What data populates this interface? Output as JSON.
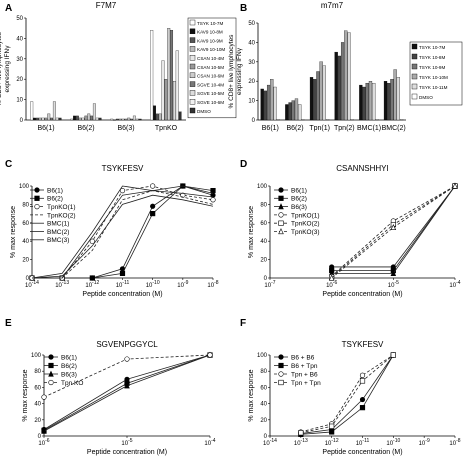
{
  "chart_data": [
    {
      "id": "A",
      "panel_letter": "A",
      "type": "bar",
      "title": "F7M7",
      "ylabel": "% CD8+ live lymphocytes expressing IFNγ",
      "ylim": [
        0,
        50
      ],
      "yticks": [
        "0",
        "10",
        "20",
        "30",
        "40",
        "50"
      ],
      "categories": [
        "B6(1)",
        "B6(2)",
        "B6(3)",
        "TpnKO"
      ],
      "legend": [
        "TSYK 10-7M",
        "KAV9 10-8M",
        "KAV9 10-9M",
        "KAV9 10-10M",
        "CSAN 10-4M",
        "CSAN 10-5M",
        "CSAN 10-6M",
        "SGVE 10-4M",
        "SGVE 10-5M",
        "SGVE 10-6M",
        "DMSO"
      ],
      "colors": [
        "#ffffff",
        "#111111",
        "#555555",
        "#bbbbbb",
        "#e8e8e8",
        "#999999",
        "#cccccc",
        "#777777",
        "#dddddd",
        "#f0f0f0",
        "#333333"
      ],
      "series_values": [
        [
          9,
          0.5,
          0.5,
          44
        ],
        [
          1,
          2,
          0,
          7
        ],
        [
          1,
          2,
          0.5,
          3
        ],
        [
          1,
          1,
          0.5,
          3
        ],
        [
          1,
          1,
          0.5,
          29
        ],
        [
          1,
          2,
          0.5,
          20
        ],
        [
          3,
          3,
          1,
          45
        ],
        [
          1,
          2,
          0.5,
          44
        ],
        [
          9,
          8,
          2,
          19
        ],
        [
          1,
          1,
          0.5,
          34
        ],
        [
          1,
          1,
          0.5,
          4
        ]
      ]
    },
    {
      "id": "B",
      "panel_letter": "B",
      "type": "bar",
      "title": "m7m7",
      "ylabel": "% CD8+ live lymphocytes expressing IFNγ",
      "ylim": [
        0,
        50
      ],
      "yticks": [
        "0",
        "10",
        "20",
        "30",
        "40",
        "50"
      ],
      "categories": [
        "B6(1)",
        "B6(2)",
        "Tpn(1)",
        "Tpn(2)",
        "BMC(1)",
        "BMC(2)"
      ],
      "legend": [
        "TSYK 10-7M",
        "TSYK 10-8M",
        "TSYK 10-9M",
        "TSYK 10-10M",
        "TSYK 10-11M",
        "DMSO"
      ],
      "colors": [
        "#111111",
        "#444444",
        "#777777",
        "#aaaaaa",
        "#dddddd",
        "#ffffff"
      ],
      "series_values": [
        [
          16,
          8,
          22,
          35,
          18,
          20
        ],
        [
          15,
          9,
          21,
          33,
          17,
          19
        ],
        [
          18,
          10,
          25,
          40,
          19,
          21
        ],
        [
          21,
          11,
          30,
          46,
          20,
          26
        ],
        [
          17,
          8,
          28,
          45,
          19,
          22
        ],
        [
          0.3,
          0.2,
          0.3,
          0.3,
          0.3,
          0.3
        ]
      ]
    },
    {
      "id": "C",
      "panel_letter": "C",
      "type": "line",
      "title": "TSYKFESV",
      "xlabel": "Peptide concentration (M)",
      "ylabel": "% max response",
      "ylim": [
        0,
        100
      ],
      "yticks": [
        "0",
        "20",
        "40",
        "60",
        "80",
        "100"
      ],
      "x_exponents": [
        -14,
        -13,
        -12,
        -11,
        -10,
        -9,
        -8
      ],
      "xtick_labels": [
        "10-14",
        "10-13",
        "10-12",
        "10-11",
        "10-10",
        "10-9",
        "10-8"
      ],
      "series": [
        {
          "name": "B6(1)",
          "style": "solid",
          "marker": "circle",
          "x": [
            -14,
            -13,
            -12,
            -11,
            -10,
            -9,
            -8
          ],
          "y": [
            0,
            0,
            0,
            10,
            78,
            100,
            90
          ]
        },
        {
          "name": "B6(2)",
          "style": "solid",
          "marker": "square",
          "x": [
            -14,
            -13,
            -12,
            -11,
            -10,
            -9,
            -8
          ],
          "y": [
            0,
            0,
            0,
            5,
            70,
            100,
            95
          ]
        },
        {
          "name": "TpnKO(1)",
          "style": "dashed",
          "marker": "open-circle",
          "x": [
            -14,
            -13,
            -12,
            -11,
            -10,
            -9,
            -8
          ],
          "y": [
            0,
            0,
            40,
            95,
            100,
            90,
            85
          ]
        },
        {
          "name": "TpnKO(2)",
          "style": "dashed",
          "marker": "none",
          "x": [
            -14,
            -13,
            -12,
            -11,
            -10,
            -9,
            -8
          ],
          "y": [
            0,
            0,
            30,
            85,
            95,
            88,
            80
          ]
        },
        {
          "name": "BMC(1)",
          "style": "solid",
          "marker": "none",
          "x": [
            -14,
            -13,
            -12,
            -11,
            -10,
            -9,
            -8
          ],
          "y": [
            0,
            5,
            50,
            100,
            95,
            100,
            92
          ]
        },
        {
          "name": "BMC(2)",
          "style": "solid",
          "marker": "none",
          "x": [
            -14,
            -13,
            -12,
            -11,
            -10,
            -9,
            -8
          ],
          "y": [
            0,
            0,
            45,
            90,
            95,
            92,
            88
          ]
        },
        {
          "name": "BMC(3)",
          "style": "solid",
          "marker": "none",
          "x": [
            -14,
            -13,
            -12,
            -11,
            -10,
            -9,
            -8
          ],
          "y": [
            0,
            2,
            35,
            80,
            90,
            85,
            78
          ]
        }
      ]
    },
    {
      "id": "D",
      "panel_letter": "D",
      "type": "line",
      "title": "CSANNSHHYI",
      "xlabel": "Peptide concentration (M)",
      "ylabel": "% max response",
      "ylim": [
        0,
        100
      ],
      "yticks": [
        "0",
        "20",
        "40",
        "60",
        "80",
        "100"
      ],
      "x_exponents": [
        -7,
        -6,
        -5,
        -4
      ],
      "xtick_labels": [
        "10-7",
        "10-6",
        "10-5",
        "10-4"
      ],
      "series": [
        {
          "name": "B6(1)",
          "style": "solid",
          "marker": "circle",
          "x": [
            -6,
            -5,
            -4
          ],
          "y": [
            12,
            12,
            100
          ]
        },
        {
          "name": "B6(2)",
          "style": "solid",
          "marker": "square",
          "x": [
            -6,
            -5,
            -4
          ],
          "y": [
            8,
            8,
            100
          ]
        },
        {
          "name": "B6(3)",
          "style": "solid",
          "marker": "triangle",
          "x": [
            -6,
            -5,
            -4
          ],
          "y": [
            5,
            5,
            100
          ]
        },
        {
          "name": "TpnKO(1)",
          "style": "dashed",
          "marker": "open-circle",
          "x": [
            -6,
            -5,
            -4
          ],
          "y": [
            2,
            62,
            100
          ]
        },
        {
          "name": "TpnKO(2)",
          "style": "dashed",
          "marker": "open-square",
          "x": [
            -6,
            -5,
            -4
          ],
          "y": [
            1,
            58,
            100
          ]
        },
        {
          "name": "TpnKO(3)",
          "style": "dashed",
          "marker": "open-triangle",
          "x": [
            -6,
            -5,
            -4
          ],
          "y": [
            0,
            55,
            100
          ]
        }
      ]
    },
    {
      "id": "E",
      "panel_letter": "E",
      "type": "line",
      "title": "SGVENPGGYCL",
      "xlabel": "Peptide concentration (M)",
      "ylabel": "% max response",
      "ylim": [
        0,
        100
      ],
      "yticks": [
        "0",
        "20",
        "40",
        "60",
        "80",
        "100"
      ],
      "x_exponents": [
        -6,
        -5,
        -4
      ],
      "xtick_labels": [
        "10-6",
        "10-5",
        "10-4"
      ],
      "series": [
        {
          "name": "B6(1)",
          "style": "solid",
          "marker": "circle",
          "x": [
            -6,
            -5,
            -4
          ],
          "y": [
            8,
            70,
            100
          ]
        },
        {
          "name": "B6(2)",
          "style": "solid",
          "marker": "square",
          "x": [
            -6,
            -5,
            -4
          ],
          "y": [
            7,
            65,
            100
          ]
        },
        {
          "name": "B6(3)",
          "style": "solid",
          "marker": "triangle",
          "x": [
            -6,
            -5,
            -4
          ],
          "y": [
            6,
            62,
            100
          ]
        },
        {
          "name": "Tpn KO",
          "style": "dashed",
          "marker": "open-circle",
          "x": [
            -6,
            -5,
            -4
          ],
          "y": [
            48,
            95,
            100
          ]
        }
      ]
    },
    {
      "id": "F",
      "panel_letter": "F",
      "type": "line",
      "title": "TSYKFESV",
      "xlabel": "Peptide concentration (M)",
      "ylabel": "% max response",
      "ylim": [
        0,
        100
      ],
      "yticks": [
        "0",
        "20",
        "40",
        "60",
        "80",
        "100"
      ],
      "x_exponents": [
        -14,
        -13,
        -12,
        -11,
        -10,
        -9,
        -8
      ],
      "xtick_labels": [
        "10-14",
        "10-13",
        "10-12",
        "10-11",
        "10-10",
        "10-9",
        "10-8"
      ],
      "series": [
        {
          "name": "B6 + B6",
          "style": "solid",
          "marker": "circle",
          "x": [
            -13,
            -12,
            -11,
            -10
          ],
          "y": [
            3,
            8,
            45,
            100
          ]
        },
        {
          "name": "B6 + Tpn",
          "style": "solid",
          "marker": "square",
          "x": [
            -13,
            -12,
            -11,
            -10
          ],
          "y": [
            2,
            5,
            35,
            100
          ]
        },
        {
          "name": "Tpn + B6",
          "style": "dashed",
          "marker": "open-circle",
          "x": [
            -13,
            -12,
            -11,
            -10
          ],
          "y": [
            5,
            15,
            75,
            100
          ]
        },
        {
          "name": "Tpn + Tpn",
          "style": "dashed",
          "marker": "open-square",
          "x": [
            -13,
            -12,
            -11,
            -10
          ],
          "y": [
            4,
            12,
            68,
            100
          ]
        }
      ]
    }
  ]
}
